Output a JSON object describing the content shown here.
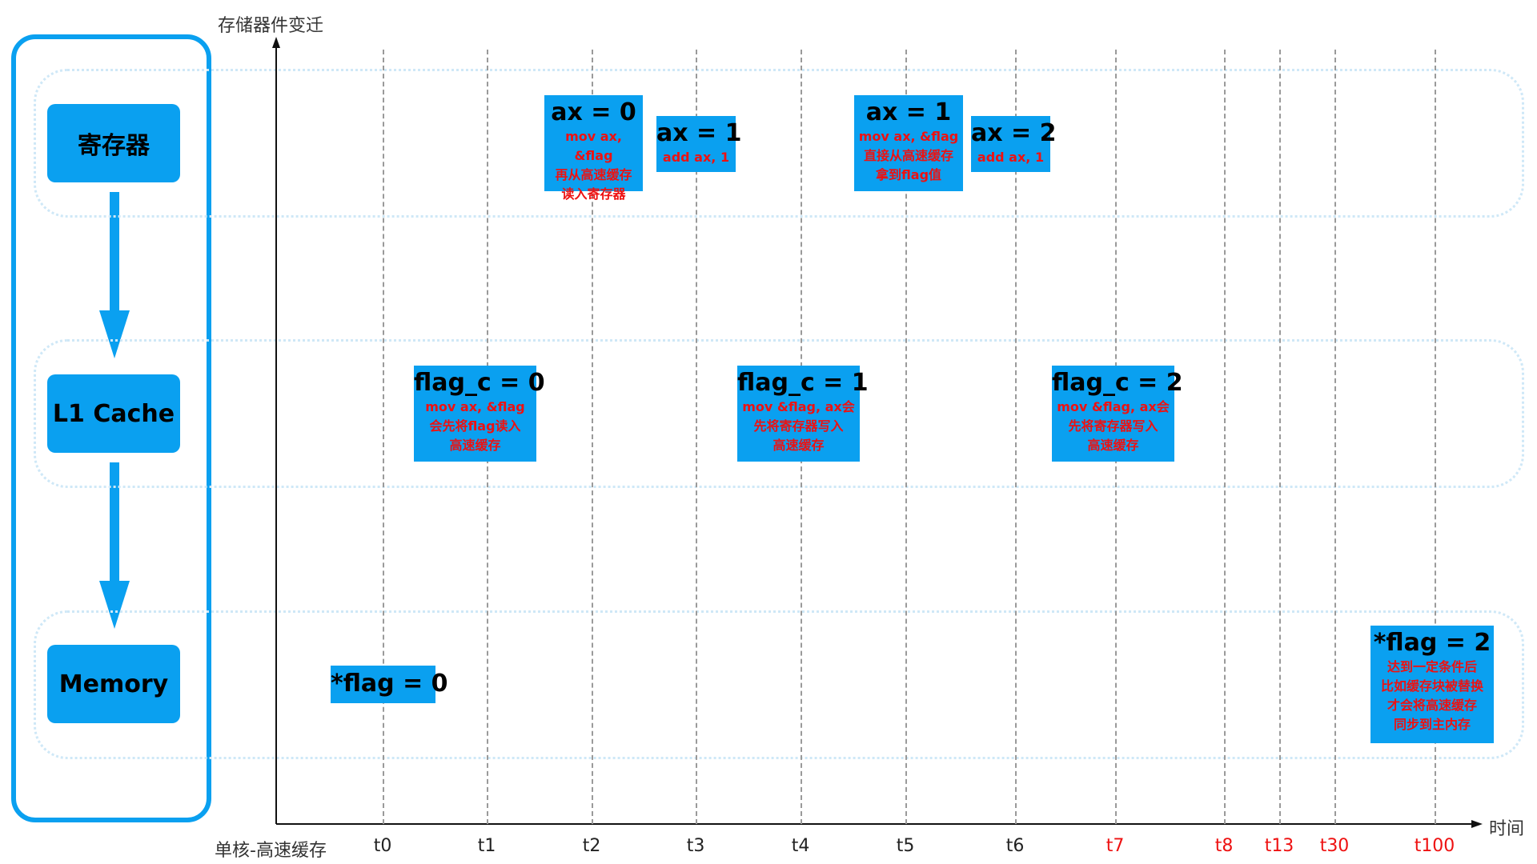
{
  "axes": {
    "y_label": "存储器件变迁",
    "x_label": "时间",
    "mode_label": "单核-高速缓存"
  },
  "layers": {
    "register": "寄存器",
    "l1_cache": "L1 Cache",
    "memory": "Memory"
  },
  "ticks": [
    {
      "label": "t0",
      "highlight": false
    },
    {
      "label": "t1",
      "highlight": false
    },
    {
      "label": "t2",
      "highlight": false
    },
    {
      "label": "t3",
      "highlight": false
    },
    {
      "label": "t4",
      "highlight": false
    },
    {
      "label": "t5",
      "highlight": false
    },
    {
      "label": "t6",
      "highlight": false
    },
    {
      "label": "t7",
      "highlight": true
    },
    {
      "label": "t8",
      "highlight": true
    },
    {
      "label": "t13",
      "highlight": true
    },
    {
      "label": "t30",
      "highlight": true
    },
    {
      "label": "t100",
      "highlight": true
    }
  ],
  "states": {
    "reg_t2": {
      "value": "ax = 0",
      "note": "mov ax, &flag\n再从高速缓存\n读入寄存器"
    },
    "reg_t3": {
      "value": "ax = 1",
      "note": "add ax, 1"
    },
    "reg_t5": {
      "value": "ax = 1",
      "note": "mov ax, &flag\n直接从高速缓存\n拿到flag值"
    },
    "reg_t6": {
      "value": "ax = 2",
      "note": "add ax, 1"
    },
    "cache_t1": {
      "value": "flag_c = 0",
      "note": "mov ax, &flag\n会先将flag读入\n高速缓存"
    },
    "cache_t4": {
      "value": "flag_c = 1",
      "note": "mov &flag, ax会\n先将寄存器写入\n高速缓存"
    },
    "cache_t7": {
      "value": "flag_c = 2",
      "note": "mov &flag, ax会\n先将寄存器写入\n高速缓存"
    },
    "mem_t0": {
      "value": "*flag = 0",
      "note": ""
    },
    "mem_t100": {
      "value": "*flag = 2",
      "note": "达到一定条件后\n比如缓存块被替换\n才会将高速缓存\n同步到主内存"
    }
  },
  "colors": {
    "accent": "#0aa0f0",
    "note_red": "#ee1111",
    "lane_border": "#cfe8f7"
  }
}
